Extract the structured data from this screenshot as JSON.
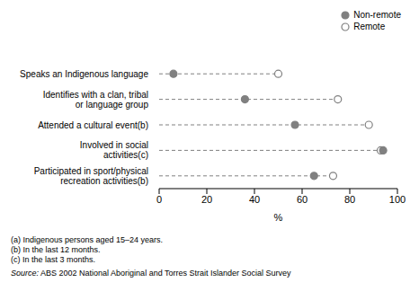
{
  "chart_data": {
    "type": "dot",
    "orientation": "horizontal",
    "categories": [
      "Speaks an Indigenous language",
      "Identifies with a clan, tribal or language group",
      "Attended a cultural event(b)",
      "Involved in social activities(c)",
      "Participated in sport/physical recreation activities(b)"
    ],
    "series": [
      {
        "name": "Non-remote",
        "color": "#808080",
        "marker": "filled_circle",
        "values": [
          6,
          36,
          57,
          94,
          65
        ]
      },
      {
        "name": "Remote",
        "color": "#808080",
        "marker": "open_circle",
        "values": [
          50,
          75,
          88,
          93,
          73
        ]
      }
    ],
    "x_label": "%",
    "xlim": [
      0,
      100
    ],
    "xticks": [
      0,
      20,
      40,
      60,
      80,
      100
    ],
    "legend": "upper right",
    "line_style": "dashed"
  },
  "footnotes": [
    "(a) Indigenous persons aged 15–24 years.",
    "(b) In the last 12 months.",
    "(c) In the last 3 months."
  ],
  "source": "Source: ABS 2002 National Aboriginal and Torres Strait Islander Social Survey"
}
